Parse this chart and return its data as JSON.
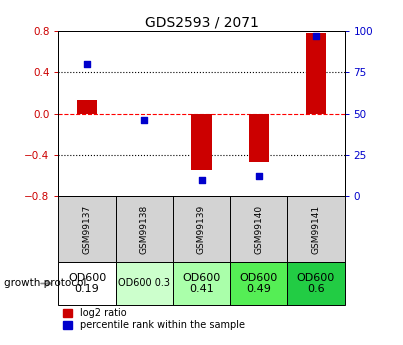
{
  "title": "GDS2593 / 2071",
  "samples": [
    "GSM99137",
    "GSM99138",
    "GSM99139",
    "GSM99140",
    "GSM99141"
  ],
  "log2_ratio": [
    0.13,
    0.0,
    -0.55,
    -0.47,
    0.78
  ],
  "percentile_rank": [
    80,
    46,
    10,
    12,
    97
  ],
  "ylim_left": [
    -0.8,
    0.8
  ],
  "ylim_right": [
    0,
    100
  ],
  "yticks_left": [
    -0.8,
    -0.4,
    0.0,
    0.4,
    0.8
  ],
  "yticks_right": [
    0,
    25,
    50,
    75,
    100
  ],
  "bar_color_red": "#cc0000",
  "bar_color_blue": "#0000cc",
  "dotted_vals": [
    -0.4,
    0.4
  ],
  "protocol_labels": [
    "OD600\n0.19",
    "OD600 0.3",
    "OD600\n0.41",
    "OD600\n0.49",
    "OD600\n0.6"
  ],
  "protocol_colors": [
    "#ffffff",
    "#ccffcc",
    "#aaffaa",
    "#55ee55",
    "#22cc44"
  ],
  "protocol_text_sizes": [
    8,
    7,
    8,
    8,
    8
  ],
  "legend_red": "log2 ratio",
  "legend_blue": "percentile rank within the sample",
  "growth_protocol_label": "growth protocol",
  "sample_bg": "#d3d3d3"
}
